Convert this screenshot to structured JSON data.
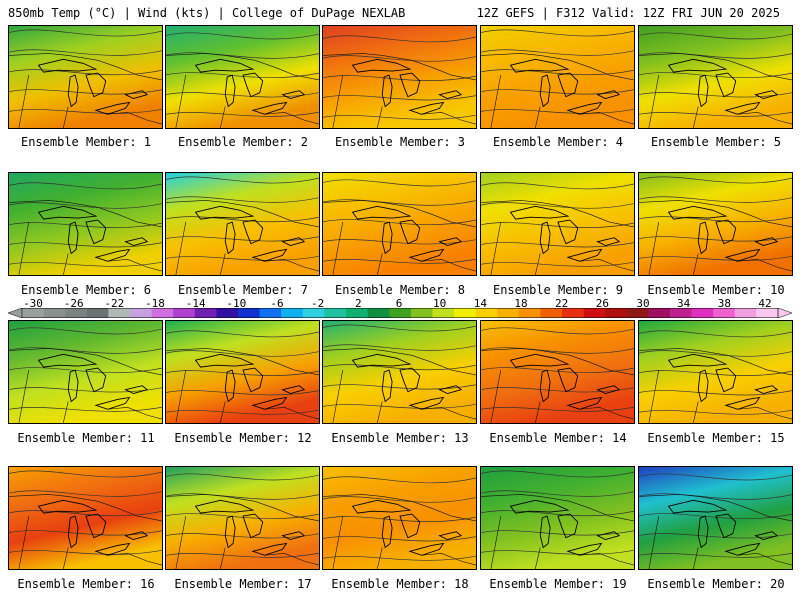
{
  "header": {
    "left": "850mb Temp (°C) | Wind (kts) | College of DuPage NEXLAB",
    "right": "12Z GEFS | F312 Valid: 12Z FRI JUN 20 2025"
  },
  "colorbar": {
    "labels": [
      "-30",
      "-26",
      "-22",
      "-18",
      "-14",
      "-10",
      "-6",
      "-2",
      "2",
      "6",
      "10",
      "14",
      "18",
      "22",
      "26",
      "30",
      "34",
      "38",
      "42"
    ],
    "colors": [
      "#9aa0a0",
      "#8a9090",
      "#7a8282",
      "#6a7474",
      "#b0b8b8",
      "#c8a0e0",
      "#d070e0",
      "#b040d0",
      "#7020b0",
      "#3010a0",
      "#1030d0",
      "#1070f0",
      "#10b0f0",
      "#30d0e0",
      "#20c0a0",
      "#10b070",
      "#109040",
      "#40a020",
      "#80c020",
      "#c0e020",
      "#f0f000",
      "#f8d000",
      "#f8b000",
      "#f89000",
      "#f06000",
      "#e83010",
      "#d01010",
      "#b01010",
      "#901818",
      "#a01060",
      "#c02090",
      "#e030c0",
      "#f060d0",
      "#f0a0e0",
      "#f8c8f0"
    ]
  },
  "panels": [
    {
      "label": "Ensemble Member: 1",
      "fill": [
        "#30a840",
        "#a0d020",
        "#f0c000",
        "#f08000"
      ]
    },
    {
      "label": "Ensemble Member: 2",
      "fill": [
        "#20b070",
        "#60c030",
        "#f0e000",
        "#f09000"
      ]
    },
    {
      "label": "Ensemble Member: 3",
      "fill": [
        "#e04020",
        "#f07010",
        "#f8a000",
        "#f8c800"
      ]
    },
    {
      "label": "Ensemble Member: 4",
      "fill": [
        "#f0d000",
        "#f8b800",
        "#f8a000",
        "#f89000"
      ]
    },
    {
      "label": "Ensemble Member: 5",
      "fill": [
        "#40a020",
        "#80c020",
        "#f0e000",
        "#f8b000"
      ]
    },
    {
      "label": "Ensemble Member: 6",
      "fill": [
        "#20a860",
        "#40b030",
        "#90c820",
        "#f0d000"
      ]
    },
    {
      "label": "Ensemble Member: 7",
      "fill": [
        "#20d0e0",
        "#c0e020",
        "#f8c000",
        "#f8a000"
      ]
    },
    {
      "label": "Ensemble Member: 8",
      "fill": [
        "#f0e000",
        "#f8c000",
        "#f8a000",
        "#f88000"
      ]
    },
    {
      "label": "Ensemble Member: 9",
      "fill": [
        "#a0d020",
        "#f0e000",
        "#f8c000",
        "#f8a000"
      ]
    },
    {
      "label": "Ensemble Member: 10",
      "fill": [
        "#80c020",
        "#f0e000",
        "#f8b000",
        "#f07000"
      ]
    },
    {
      "label": "Ensemble Member: 11",
      "fill": [
        "#20a040",
        "#60b830",
        "#c0e020",
        "#f0e000"
      ]
    },
    {
      "label": "Ensemble Member: 12",
      "fill": [
        "#20b050",
        "#c0e020",
        "#f8a000",
        "#e84010"
      ]
    },
    {
      "label": "Ensemble Member: 13",
      "fill": [
        "#20b070",
        "#a0d020",
        "#f8d000",
        "#f8b000"
      ]
    },
    {
      "label": "Ensemble Member: 14",
      "fill": [
        "#f8c000",
        "#f89000",
        "#f07010",
        "#e84010"
      ]
    },
    {
      "label": "Ensemble Member: 15",
      "fill": [
        "#20a840",
        "#a0d020",
        "#f8d000",
        "#f8b000"
      ]
    },
    {
      "label": "Ensemble Member: 16",
      "fill": [
        "#f8a000",
        "#f07010",
        "#e84010",
        "#f8c000"
      ]
    },
    {
      "label": "Ensemble Member: 17",
      "fill": [
        "#20a060",
        "#c0e020",
        "#f8b000",
        "#f07010"
      ]
    },
    {
      "label": "Ensemble Member: 18",
      "fill": [
        "#f8c000",
        "#f8a000",
        "#f89000",
        "#f8b000"
      ]
    },
    {
      "label": "Ensemble Member: 19",
      "fill": [
        "#20a040",
        "#40b030",
        "#80c020",
        "#c0e020"
      ]
    },
    {
      "label": "Ensemble Member: 20",
      "fill": [
        "#2040c0",
        "#20c0d0",
        "#20a040",
        "#80c020"
      ]
    }
  ]
}
